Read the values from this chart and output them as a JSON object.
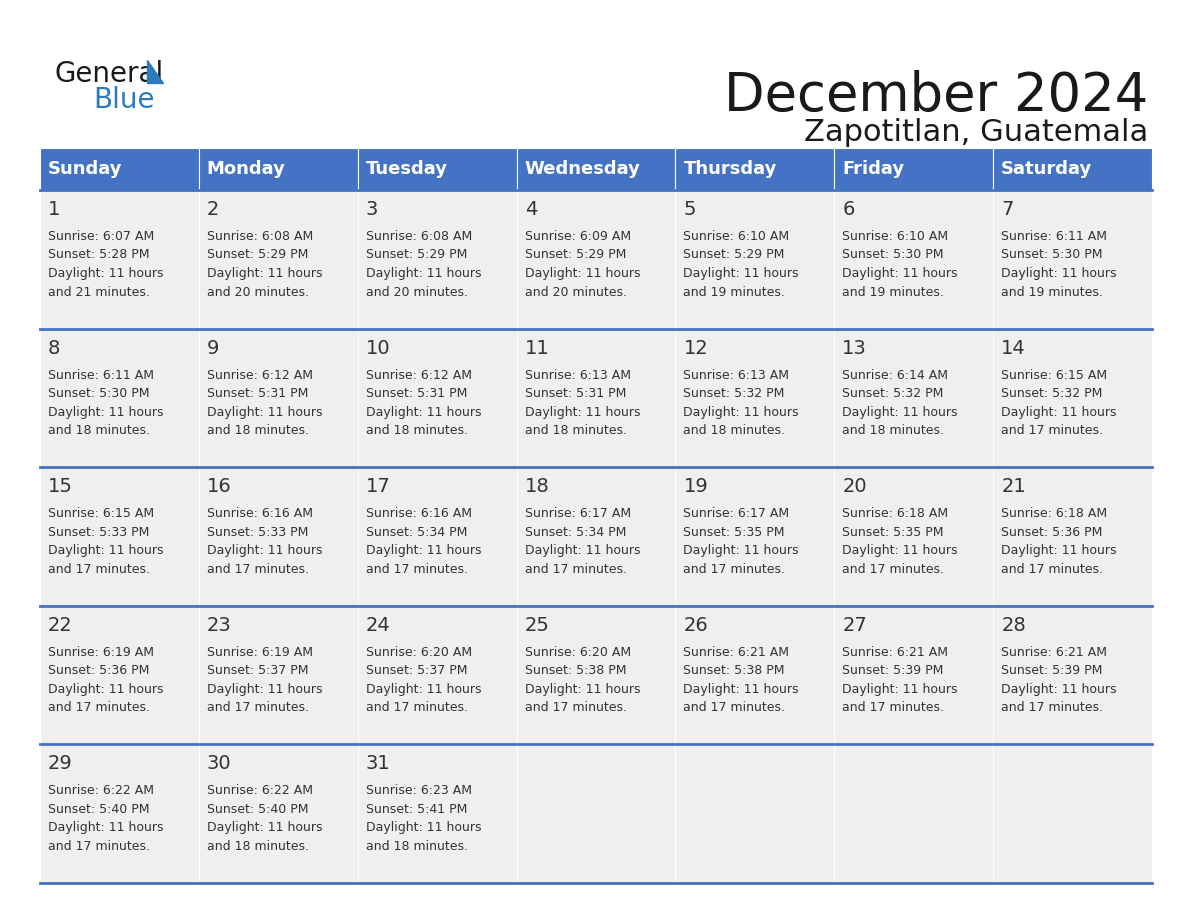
{
  "title": "December 2024",
  "subtitle": "Zapotitlan, Guatemala",
  "header_color": "#4472C4",
  "header_text_color": "#FFFFFF",
  "day_headers": [
    "Sunday",
    "Monday",
    "Tuesday",
    "Wednesday",
    "Thursday",
    "Friday",
    "Saturday"
  ],
  "background_color": "#FFFFFF",
  "cell_bg_color": "#EFEFEF",
  "line_color": "#4472C4",
  "text_color": "#333333",
  "logo_black": "#1a1a1a",
  "logo_blue": "#2B7BBD",
  "days": [
    {
      "day": 1,
      "col": 0,
      "row": 0,
      "sunrise": "6:07 AM",
      "sunset": "5:28 PM",
      "daylight_hours": 11,
      "daylight_minutes": 21
    },
    {
      "day": 2,
      "col": 1,
      "row": 0,
      "sunrise": "6:08 AM",
      "sunset": "5:29 PM",
      "daylight_hours": 11,
      "daylight_minutes": 20
    },
    {
      "day": 3,
      "col": 2,
      "row": 0,
      "sunrise": "6:08 AM",
      "sunset": "5:29 PM",
      "daylight_hours": 11,
      "daylight_minutes": 20
    },
    {
      "day": 4,
      "col": 3,
      "row": 0,
      "sunrise": "6:09 AM",
      "sunset": "5:29 PM",
      "daylight_hours": 11,
      "daylight_minutes": 20
    },
    {
      "day": 5,
      "col": 4,
      "row": 0,
      "sunrise": "6:10 AM",
      "sunset": "5:29 PM",
      "daylight_hours": 11,
      "daylight_minutes": 19
    },
    {
      "day": 6,
      "col": 5,
      "row": 0,
      "sunrise": "6:10 AM",
      "sunset": "5:30 PM",
      "daylight_hours": 11,
      "daylight_minutes": 19
    },
    {
      "day": 7,
      "col": 6,
      "row": 0,
      "sunrise": "6:11 AM",
      "sunset": "5:30 PM",
      "daylight_hours": 11,
      "daylight_minutes": 19
    },
    {
      "day": 8,
      "col": 0,
      "row": 1,
      "sunrise": "6:11 AM",
      "sunset": "5:30 PM",
      "daylight_hours": 11,
      "daylight_minutes": 18
    },
    {
      "day": 9,
      "col": 1,
      "row": 1,
      "sunrise": "6:12 AM",
      "sunset": "5:31 PM",
      "daylight_hours": 11,
      "daylight_minutes": 18
    },
    {
      "day": 10,
      "col": 2,
      "row": 1,
      "sunrise": "6:12 AM",
      "sunset": "5:31 PM",
      "daylight_hours": 11,
      "daylight_minutes": 18
    },
    {
      "day": 11,
      "col": 3,
      "row": 1,
      "sunrise": "6:13 AM",
      "sunset": "5:31 PM",
      "daylight_hours": 11,
      "daylight_minutes": 18
    },
    {
      "day": 12,
      "col": 4,
      "row": 1,
      "sunrise": "6:13 AM",
      "sunset": "5:32 PM",
      "daylight_hours": 11,
      "daylight_minutes": 18
    },
    {
      "day": 13,
      "col": 5,
      "row": 1,
      "sunrise": "6:14 AM",
      "sunset": "5:32 PM",
      "daylight_hours": 11,
      "daylight_minutes": 18
    },
    {
      "day": 14,
      "col": 6,
      "row": 1,
      "sunrise": "6:15 AM",
      "sunset": "5:32 PM",
      "daylight_hours": 11,
      "daylight_minutes": 17
    },
    {
      "day": 15,
      "col": 0,
      "row": 2,
      "sunrise": "6:15 AM",
      "sunset": "5:33 PM",
      "daylight_hours": 11,
      "daylight_minutes": 17
    },
    {
      "day": 16,
      "col": 1,
      "row": 2,
      "sunrise": "6:16 AM",
      "sunset": "5:33 PM",
      "daylight_hours": 11,
      "daylight_minutes": 17
    },
    {
      "day": 17,
      "col": 2,
      "row": 2,
      "sunrise": "6:16 AM",
      "sunset": "5:34 PM",
      "daylight_hours": 11,
      "daylight_minutes": 17
    },
    {
      "day": 18,
      "col": 3,
      "row": 2,
      "sunrise": "6:17 AM",
      "sunset": "5:34 PM",
      "daylight_hours": 11,
      "daylight_minutes": 17
    },
    {
      "day": 19,
      "col": 4,
      "row": 2,
      "sunrise": "6:17 AM",
      "sunset": "5:35 PM",
      "daylight_hours": 11,
      "daylight_minutes": 17
    },
    {
      "day": 20,
      "col": 5,
      "row": 2,
      "sunrise": "6:18 AM",
      "sunset": "5:35 PM",
      "daylight_hours": 11,
      "daylight_minutes": 17
    },
    {
      "day": 21,
      "col": 6,
      "row": 2,
      "sunrise": "6:18 AM",
      "sunset": "5:36 PM",
      "daylight_hours": 11,
      "daylight_minutes": 17
    },
    {
      "day": 22,
      "col": 0,
      "row": 3,
      "sunrise": "6:19 AM",
      "sunset": "5:36 PM",
      "daylight_hours": 11,
      "daylight_minutes": 17
    },
    {
      "day": 23,
      "col": 1,
      "row": 3,
      "sunrise": "6:19 AM",
      "sunset": "5:37 PM",
      "daylight_hours": 11,
      "daylight_minutes": 17
    },
    {
      "day": 24,
      "col": 2,
      "row": 3,
      "sunrise": "6:20 AM",
      "sunset": "5:37 PM",
      "daylight_hours": 11,
      "daylight_minutes": 17
    },
    {
      "day": 25,
      "col": 3,
      "row": 3,
      "sunrise": "6:20 AM",
      "sunset": "5:38 PM",
      "daylight_hours": 11,
      "daylight_minutes": 17
    },
    {
      "day": 26,
      "col": 4,
      "row": 3,
      "sunrise": "6:21 AM",
      "sunset": "5:38 PM",
      "daylight_hours": 11,
      "daylight_minutes": 17
    },
    {
      "day": 27,
      "col": 5,
      "row": 3,
      "sunrise": "6:21 AM",
      "sunset": "5:39 PM",
      "daylight_hours": 11,
      "daylight_minutes": 17
    },
    {
      "day": 28,
      "col": 6,
      "row": 3,
      "sunrise": "6:21 AM",
      "sunset": "5:39 PM",
      "daylight_hours": 11,
      "daylight_minutes": 17
    },
    {
      "day": 29,
      "col": 0,
      "row": 4,
      "sunrise": "6:22 AM",
      "sunset": "5:40 PM",
      "daylight_hours": 11,
      "daylight_minutes": 17
    },
    {
      "day": 30,
      "col": 1,
      "row": 4,
      "sunrise": "6:22 AM",
      "sunset": "5:40 PM",
      "daylight_hours": 11,
      "daylight_minutes": 18
    },
    {
      "day": 31,
      "col": 2,
      "row": 4,
      "sunrise": "6:23 AM",
      "sunset": "5:41 PM",
      "daylight_hours": 11,
      "daylight_minutes": 18
    }
  ]
}
